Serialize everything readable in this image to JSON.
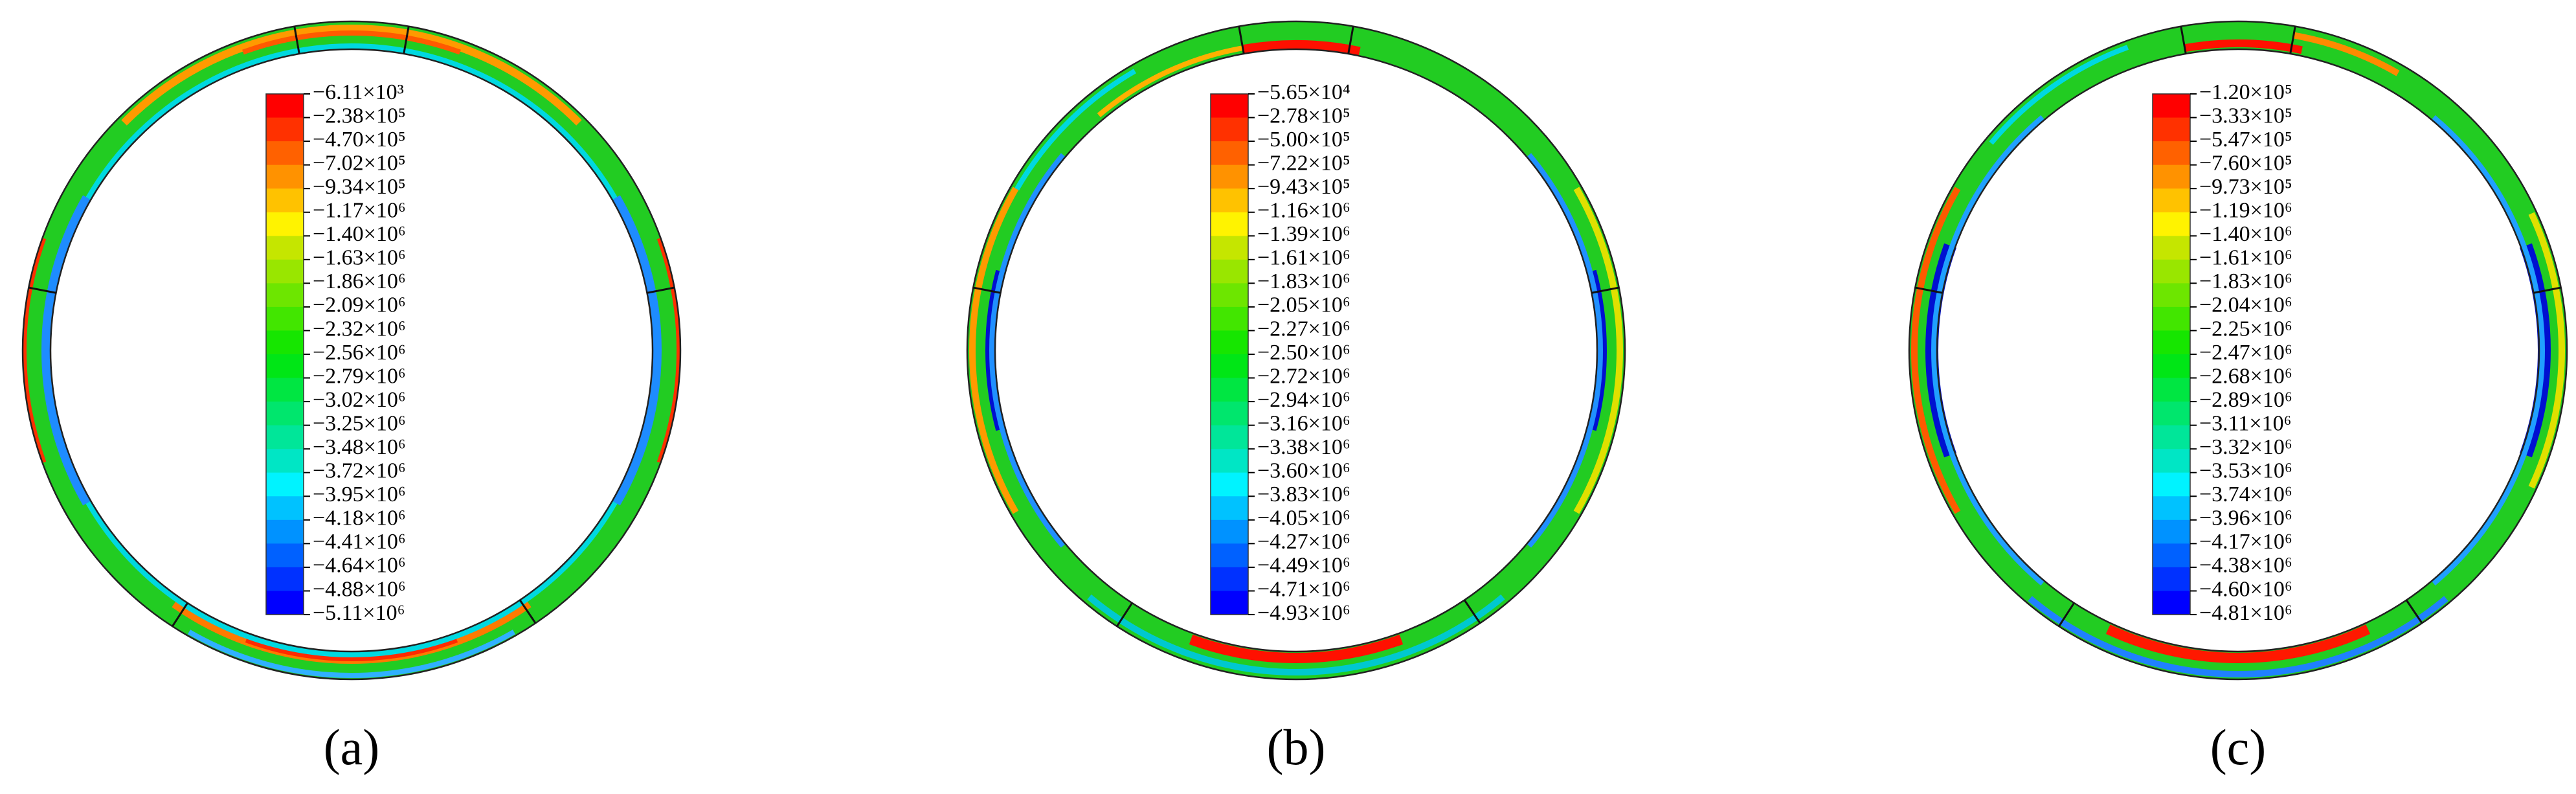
{
  "panels": [
    {
      "label": "(a)",
      "legend": [
        "−6.11×10³",
        "−2.38×10⁵",
        "−4.70×10⁵",
        "−7.02×10⁵",
        "−9.34×10⁵",
        "−1.17×10⁶",
        "−1.40×10⁶",
        "−1.63×10⁶",
        "−1.86×10⁶",
        "−2.09×10⁶",
        "−2.32×10⁶",
        "−2.56×10⁶",
        "−2.79×10⁶",
        "−3.02×10⁶",
        "−3.25×10⁶",
        "−3.48×10⁶",
        "−3.72×10⁶",
        "−3.95×10⁶",
        "−4.18×10⁶",
        "−4.41×10⁶",
        "−4.64×10⁶",
        "−4.88×10⁶",
        "−5.11×10⁶"
      ]
    },
    {
      "label": "(b)",
      "legend": [
        "−5.65×10⁴",
        "−2.78×10⁵",
        "−5.00×10⁵",
        "−7.22×10⁵",
        "−9.43×10⁵",
        "−1.16×10⁶",
        "−1.39×10⁶",
        "−1.61×10⁶",
        "−1.83×10⁶",
        "−2.05×10⁶",
        "−2.27×10⁶",
        "−2.50×10⁶",
        "−2.72×10⁶",
        "−2.94×10⁶",
        "−3.16×10⁶",
        "−3.38×10⁶",
        "−3.60×10⁶",
        "−3.83×10⁶",
        "−4.05×10⁶",
        "−4.27×10⁶",
        "−4.49×10⁶",
        "−4.71×10⁶",
        "−4.93×10⁶"
      ]
    },
    {
      "label": "(c)",
      "legend": [
        "−1.20×10⁵",
        "−3.33×10⁵",
        "−5.47×10⁵",
        "−7.60×10⁵",
        "−9.73×10⁵",
        "−1.19×10⁶",
        "−1.40×10⁶",
        "−1.61×10⁶",
        "−1.83×10⁶",
        "−2.04×10⁶",
        "−2.25×10⁶",
        "−2.47×10⁶",
        "−2.68×10⁶",
        "−2.89×10⁶",
        "−3.11×10⁶",
        "−3.32×10⁶",
        "−3.53×10⁶",
        "−3.74×10⁶",
        "−3.96×10⁶",
        "−4.17×10⁶",
        "−4.38×10⁶",
        "−4.60×10⁶",
        "−4.81×10⁶"
      ]
    }
  ]
}
